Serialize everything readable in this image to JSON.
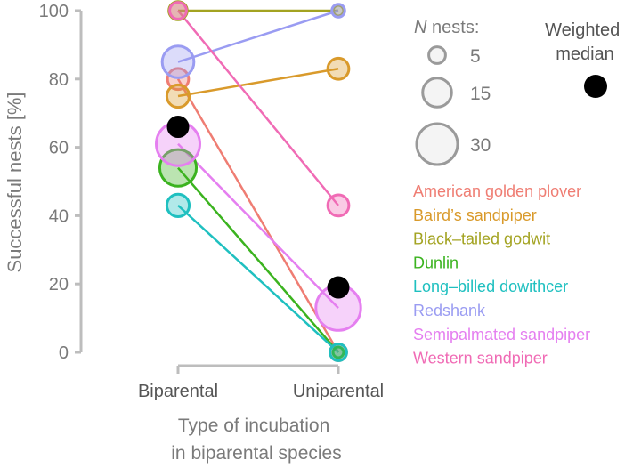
{
  "chart_data": {
    "type": "line",
    "title": "",
    "xlabel": [
      "Type of incubation",
      "in biparental species"
    ],
    "ylabel": "Successful nests [%]",
    "categories": [
      "Biparental",
      "Uniparental"
    ],
    "ylim": [
      0,
      100
    ],
    "yticks": [
      0,
      20,
      40,
      60,
      80,
      100
    ],
    "grid": false,
    "series": [
      {
        "name": "American golden plover",
        "color": "#ef7d73",
        "values": [
          80,
          0
        ],
        "n": [
          8,
          5
        ]
      },
      {
        "name": "Baird’s sandpiper",
        "color": "#d99a2b",
        "values": [
          75,
          83
        ],
        "n": [
          9,
          8
        ]
      },
      {
        "name": "Black–tailed godwit",
        "color": "#a3a321",
        "values": [
          100,
          100
        ],
        "n": [
          6,
          2
        ]
      },
      {
        "name": "Dunlin",
        "color": "#3bb31f",
        "values": [
          54,
          0
        ],
        "n": [
          24,
          2
        ]
      },
      {
        "name": "Long–billed dowithcer",
        "color": "#1fc0c0",
        "values": [
          43,
          0
        ],
        "n": [
          9,
          5
        ]
      },
      {
        "name": "Redshank",
        "color": "#9a9cf2",
        "values": [
          85,
          100
        ],
        "n": [
          18,
          3
        ]
      },
      {
        "name": "Semipalmated sandpiper",
        "color": "#e57ff0",
        "values": [
          61,
          13
        ],
        "n": [
          34,
          36
        ]
      },
      {
        "name": "Western sandpiper",
        "color": "#f06bb5",
        "values": [
          100,
          43
        ],
        "n": [
          5,
          8
        ]
      }
    ],
    "weighted_median": {
      "label": [
        "Weighted",
        "median"
      ],
      "values": [
        66,
        19
      ]
    },
    "size_legend": {
      "title_italic": "N",
      "title_rest": " nests:",
      "items": [
        {
          "label": "5",
          "n": 5
        },
        {
          "label": "15",
          "n": 15
        },
        {
          "label": "30",
          "n": 30
        }
      ]
    },
    "legend_position": "right"
  }
}
